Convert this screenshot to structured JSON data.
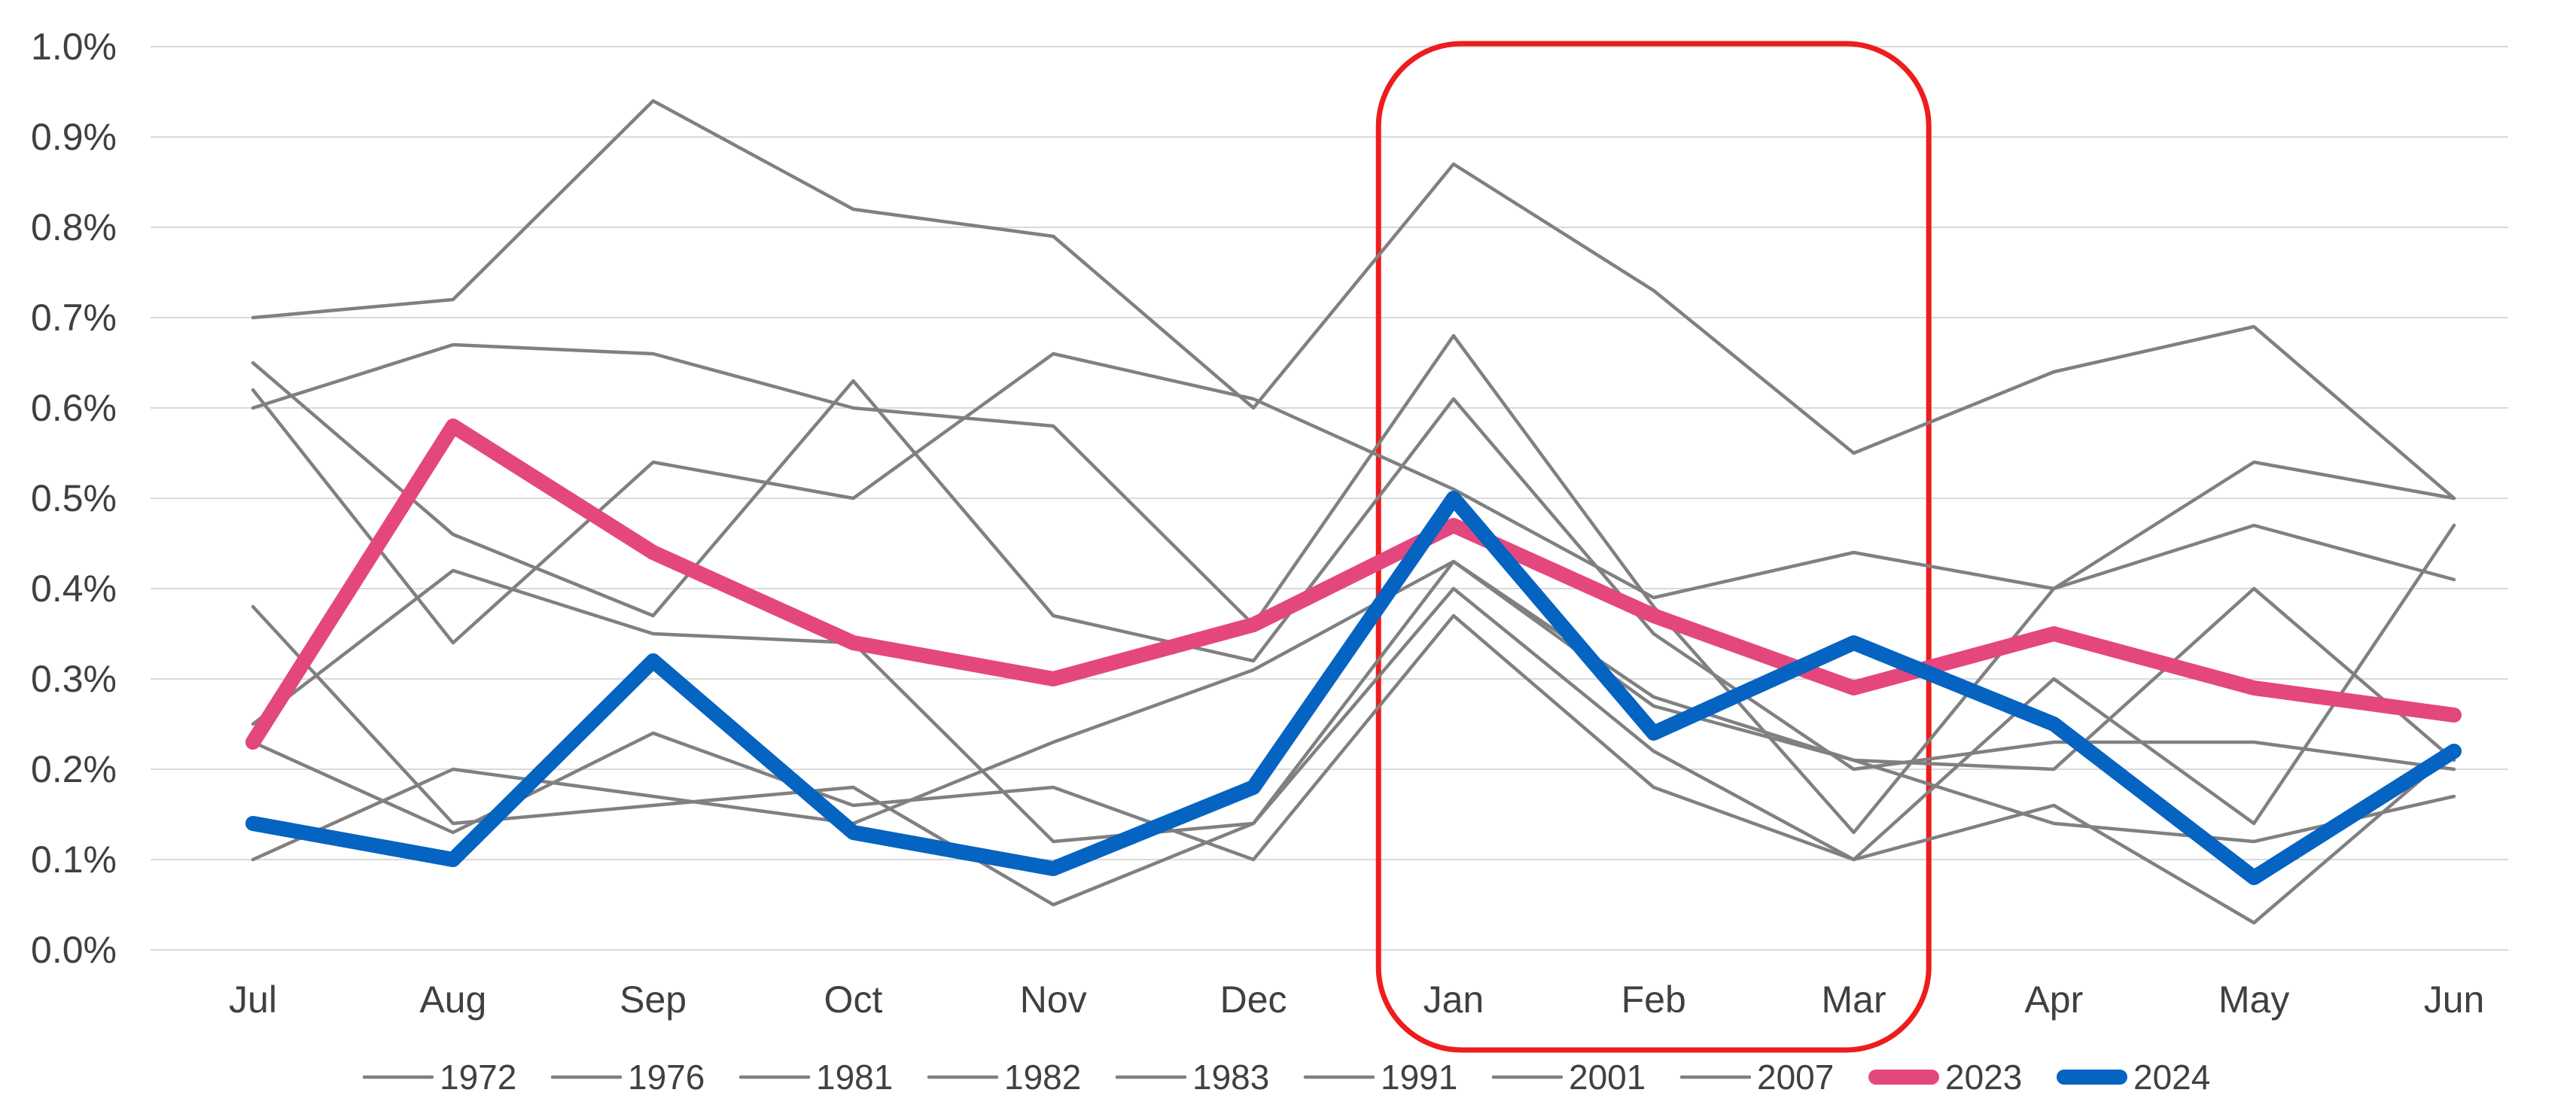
{
  "chart_data": {
    "type": "line",
    "title": "",
    "xlabel": "",
    "ylabel": "",
    "categories": [
      "Jul",
      "Aug",
      "Sep",
      "Oct",
      "Nov",
      "Dec",
      "Jan",
      "Feb",
      "Mar",
      "Apr",
      "May",
      "Jun"
    ],
    "yticks": [
      "0.0%",
      "0.1%",
      "0.2%",
      "0.3%",
      "0.4%",
      "0.5%",
      "0.6%",
      "0.7%",
      "0.8%",
      "0.9%",
      "1.0%"
    ],
    "ylim": [
      0,
      1.0
    ],
    "y_unit": "%",
    "grid": "horizontal",
    "legend_position": "bottom",
    "highlight": {
      "label": "Jan–Mar",
      "from": "Jan",
      "to": "Mar",
      "color": "#ee1c1c"
    },
    "series": [
      {
        "name": "1972",
        "color": "#808080",
        "emphasis": false,
        "values": [
          0.7,
          0.72,
          0.94,
          0.82,
          0.79,
          0.6,
          0.87,
          0.73,
          0.55,
          0.64,
          0.69,
          0.5
        ]
      },
      {
        "name": "1976",
        "color": "#808080",
        "emphasis": false,
        "values": [
          0.6,
          0.67,
          0.66,
          0.6,
          0.58,
          0.36,
          0.68,
          0.38,
          0.13,
          0.4,
          0.54,
          0.5
        ]
      },
      {
        "name": "1981",
        "color": "#808080",
        "emphasis": false,
        "values": [
          0.65,
          0.46,
          0.37,
          0.63,
          0.37,
          0.32,
          0.61,
          0.35,
          0.2,
          0.23,
          0.23,
          0.2
        ]
      },
      {
        "name": "1982",
        "color": "#808080",
        "emphasis": false,
        "values": [
          0.62,
          0.34,
          0.54,
          0.5,
          0.66,
          0.61,
          0.51,
          0.39,
          0.44,
          0.4,
          0.47,
          0.41
        ]
      },
      {
        "name": "1983",
        "color": "#808080",
        "emphasis": false,
        "values": [
          0.38,
          0.14,
          0.16,
          0.18,
          0.05,
          0.14,
          0.43,
          0.27,
          0.21,
          0.2,
          0.4,
          0.21
        ]
      },
      {
        "name": "1991",
        "color": "#808080",
        "emphasis": false,
        "values": [
          0.25,
          0.42,
          0.35,
          0.34,
          0.12,
          0.14,
          0.4,
          0.22,
          0.1,
          0.3,
          0.14,
          0.47
        ]
      },
      {
        "name": "2001",
        "color": "#808080",
        "emphasis": false,
        "values": [
          0.23,
          0.13,
          0.24,
          0.16,
          0.18,
          0.1,
          0.37,
          0.18,
          0.1,
          0.16,
          0.03,
          0.22
        ]
      },
      {
        "name": "2007",
        "color": "#808080",
        "emphasis": false,
        "values": [
          0.1,
          0.2,
          0.17,
          0.14,
          0.23,
          0.31,
          0.43,
          0.28,
          0.21,
          0.14,
          0.12,
          0.17
        ]
      },
      {
        "name": "2023",
        "color": "#e4477d",
        "emphasis": true,
        "values": [
          0.23,
          0.58,
          0.44,
          0.34,
          0.3,
          0.36,
          0.47,
          0.37,
          0.29,
          0.35,
          0.29,
          0.26
        ]
      },
      {
        "name": "2024",
        "color": "#0563c1",
        "emphasis": true,
        "values": [
          0.14,
          0.1,
          0.32,
          0.13,
          0.09,
          0.18,
          0.5,
          0.24,
          0.34,
          0.25,
          0.08,
          0.22
        ]
      }
    ]
  }
}
